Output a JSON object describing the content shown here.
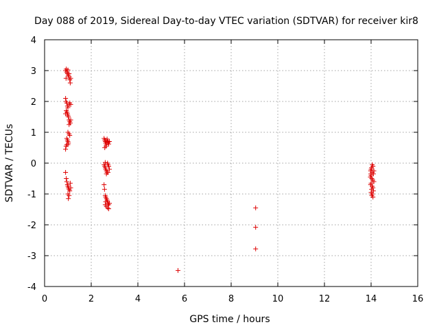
{
  "chart_data": {
    "type": "scatter",
    "title": "Day 088 of 2019, Sidereal Day-to-day VTEC variation (SDTVAR) for receiver kir8",
    "xlabel": "GPS time / hours",
    "ylabel": "SDTVAR / TECUs",
    "xlim": [
      0,
      16
    ],
    "ylim": [
      -4,
      4
    ],
    "xticks": [
      "0",
      "2",
      "4",
      "6",
      "8",
      "10",
      "12",
      "14",
      "16"
    ],
    "yticks": [
      "-4",
      "-3",
      "-2",
      "-1",
      "0",
      "1",
      "2",
      "3",
      "4"
    ],
    "grid": true,
    "marker": "+",
    "color": "#dd0000",
    "points": [
      [
        0.9,
        3.0
      ],
      [
        0.93,
        3.05
      ],
      [
        0.95,
        2.95
      ],
      [
        0.98,
        2.9
      ],
      [
        1.0,
        3.02
      ],
      [
        1.02,
        2.85
      ],
      [
        1.05,
        2.8
      ],
      [
        1.08,
        2.7
      ],
      [
        1.1,
        2.6
      ],
      [
        1.12,
        2.75
      ],
      [
        0.92,
        2.75
      ],
      [
        1.05,
        2.9
      ],
      [
        0.9,
        2.1
      ],
      [
        0.92,
        2.0
      ],
      [
        0.95,
        1.95
      ],
      [
        0.98,
        1.85
      ],
      [
        1.0,
        1.8
      ],
      [
        1.05,
        1.9
      ],
      [
        1.08,
        1.95
      ],
      [
        1.12,
        1.9
      ],
      [
        0.93,
        1.7
      ],
      [
        0.96,
        1.65
      ],
      [
        0.98,
        1.6
      ],
      [
        0.9,
        1.6
      ],
      [
        1.0,
        1.55
      ],
      [
        1.02,
        1.5
      ],
      [
        1.05,
        1.4
      ],
      [
        1.08,
        1.35
      ],
      [
        1.1,
        1.3
      ],
      [
        1.12,
        1.4
      ],
      [
        1.05,
        1.25
      ],
      [
        1.0,
        1.0
      ],
      [
        1.05,
        0.95
      ],
      [
        1.08,
        0.9
      ],
      [
        0.95,
        0.8
      ],
      [
        0.98,
        0.75
      ],
      [
        1.0,
        0.7
      ],
      [
        1.02,
        0.65
      ],
      [
        0.95,
        0.6
      ],
      [
        0.92,
        0.55
      ],
      [
        0.9,
        0.45
      ],
      [
        1.0,
        0.6
      ],
      [
        0.9,
        -0.3
      ],
      [
        0.93,
        -0.5
      ],
      [
        0.95,
        -0.6
      ],
      [
        0.98,
        -0.7
      ],
      [
        1.0,
        -0.75
      ],
      [
        1.02,
        -0.8
      ],
      [
        1.05,
        -0.85
      ],
      [
        1.08,
        -0.9
      ],
      [
        1.0,
        -1.0
      ],
      [
        1.05,
        -1.05
      ],
      [
        1.02,
        -1.15
      ],
      [
        1.1,
        -0.65
      ],
      [
        1.12,
        -0.8
      ],
      [
        2.55,
        0.8
      ],
      [
        2.58,
        0.75
      ],
      [
        2.6,
        0.7
      ],
      [
        2.62,
        0.65
      ],
      [
        2.65,
        0.6
      ],
      [
        2.68,
        0.78
      ],
      [
        2.7,
        0.72
      ],
      [
        2.72,
        0.68
      ],
      [
        2.75,
        0.62
      ],
      [
        2.78,
        0.7
      ],
      [
        2.63,
        0.55
      ],
      [
        2.58,
        0.5
      ],
      [
        2.55,
        -0.05
      ],
      [
        2.58,
        -0.1
      ],
      [
        2.6,
        -0.15
      ],
      [
        2.62,
        -0.2
      ],
      [
        2.65,
        -0.25
      ],
      [
        2.68,
        -0.3
      ],
      [
        2.7,
        0.0
      ],
      [
        2.72,
        -0.05
      ],
      [
        2.75,
        -0.1
      ],
      [
        2.78,
        -0.2
      ],
      [
        2.6,
        0.02
      ],
      [
        2.65,
        -0.35
      ],
      [
        2.72,
        -0.3
      ],
      [
        2.55,
        -0.7
      ],
      [
        2.57,
        -0.85
      ],
      [
        2.6,
        -1.05
      ],
      [
        2.62,
        -1.1
      ],
      [
        2.65,
        -1.15
      ],
      [
        2.68,
        -1.2
      ],
      [
        2.7,
        -1.25
      ],
      [
        2.72,
        -1.3
      ],
      [
        2.75,
        -1.35
      ],
      [
        2.6,
        -1.35
      ],
      [
        2.65,
        -1.4
      ],
      [
        2.7,
        -1.45
      ],
      [
        2.78,
        -1.3
      ],
      [
        2.75,
        -1.48
      ],
      [
        2.62,
        -1.25
      ],
      [
        5.72,
        -3.48
      ],
      [
        9.05,
        -1.45
      ],
      [
        9.05,
        -2.08
      ],
      [
        9.05,
        -2.78
      ],
      [
        14.05,
        -0.05
      ],
      [
        14.08,
        -0.1
      ],
      [
        14.02,
        -0.15
      ],
      [
        14.0,
        -0.2
      ],
      [
        13.98,
        -0.25
      ],
      [
        14.05,
        -0.3
      ],
      [
        14.1,
        -0.35
      ],
      [
        14.0,
        -0.4
      ],
      [
        13.97,
        -0.45
      ],
      [
        14.03,
        -0.5
      ],
      [
        14.07,
        -0.55
      ],
      [
        14.12,
        -0.6
      ],
      [
        14.0,
        -0.65
      ],
      [
        13.98,
        -0.7
      ],
      [
        14.05,
        -0.75
      ],
      [
        14.08,
        -0.8
      ],
      [
        14.02,
        -0.85
      ],
      [
        14.1,
        -0.9
      ],
      [
        14.0,
        -0.95
      ],
      [
        14.05,
        -1.0
      ],
      [
        14.03,
        -1.05
      ],
      [
        14.08,
        -1.1
      ],
      [
        13.99,
        -0.35
      ],
      [
        14.12,
        -0.25
      ]
    ]
  }
}
